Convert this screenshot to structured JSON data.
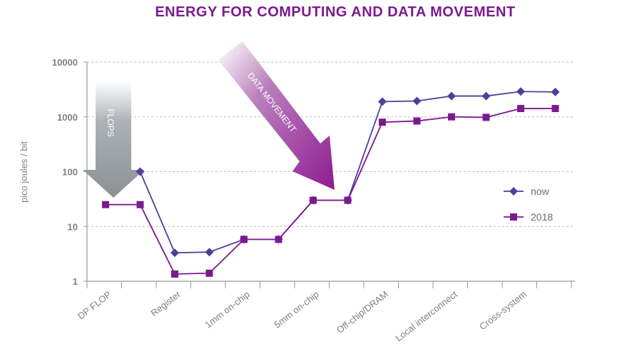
{
  "chart_data": {
    "type": "line",
    "title": "ENERGY FOR COMPUTING AND DATA MOVEMENT",
    "ylabel": "pico joules / bit",
    "xlabel": "",
    "yscale": "log",
    "ylim": [
      1,
      10000
    ],
    "yticks": [
      "1",
      "10",
      "100",
      "1000",
      "10000"
    ],
    "yticks_values": [
      1,
      10,
      100,
      1000,
      10000
    ],
    "categories": [
      "DP FLOP",
      "Register",
      "1mm on-chip",
      "5mm on-chip",
      "Off-chip/DRAM",
      "Local interconnect",
      "Cross-system"
    ],
    "grid": true,
    "legend_position": "right",
    "series": [
      {
        "name": "now",
        "color": "#4f3f9a",
        "marker": "diamond",
        "points": [
          {
            "x": 1.5,
            "y": 100
          },
          {
            "x": 2,
            "y": 3.3
          },
          {
            "x": 2.5,
            "y": 3.4
          },
          {
            "x": 3,
            "y": 5.8
          },
          {
            "x": 3.5,
            "y": 5.8
          },
          {
            "x": 4,
            "y": 30
          },
          {
            "x": 4.5,
            "y": 30
          },
          {
            "x": 5,
            "y": 1900
          },
          {
            "x": 5.5,
            "y": 1950
          },
          {
            "x": 6,
            "y": 2400
          },
          {
            "x": 6.5,
            "y": 2400
          },
          {
            "x": 7,
            "y": 2900
          },
          {
            "x": 7.5,
            "y": 2850
          }
        ]
      },
      {
        "name": "2018",
        "color": "#7b1a8f",
        "marker": "square",
        "points": [
          {
            "x": 1,
            "y": 25
          },
          {
            "x": 1.5,
            "y": 25
          },
          {
            "x": 2,
            "y": 1.35
          },
          {
            "x": 2.5,
            "y": 1.4
          },
          {
            "x": 3,
            "y": 5.8
          },
          {
            "x": 3.5,
            "y": 5.8
          },
          {
            "x": 4,
            "y": 30
          },
          {
            "x": 4.5,
            "y": 30
          },
          {
            "x": 5,
            "y": 800
          },
          {
            "x": 5.5,
            "y": 840
          },
          {
            "x": 6,
            "y": 1000
          },
          {
            "x": 6.5,
            "y": 980
          },
          {
            "x": 7,
            "y": 1420
          },
          {
            "x": 7.5,
            "y": 1420
          }
        ]
      }
    ],
    "annotations": [
      "FLOPS",
      "DATA MOVEMENT"
    ]
  },
  "colors": {
    "title": "#7b1a8f",
    "axis": "#9a9a9a",
    "grid": "#bdbdbd",
    "flops_arrow": "#8a9095",
    "data_arrow": "#8c1a8c"
  }
}
